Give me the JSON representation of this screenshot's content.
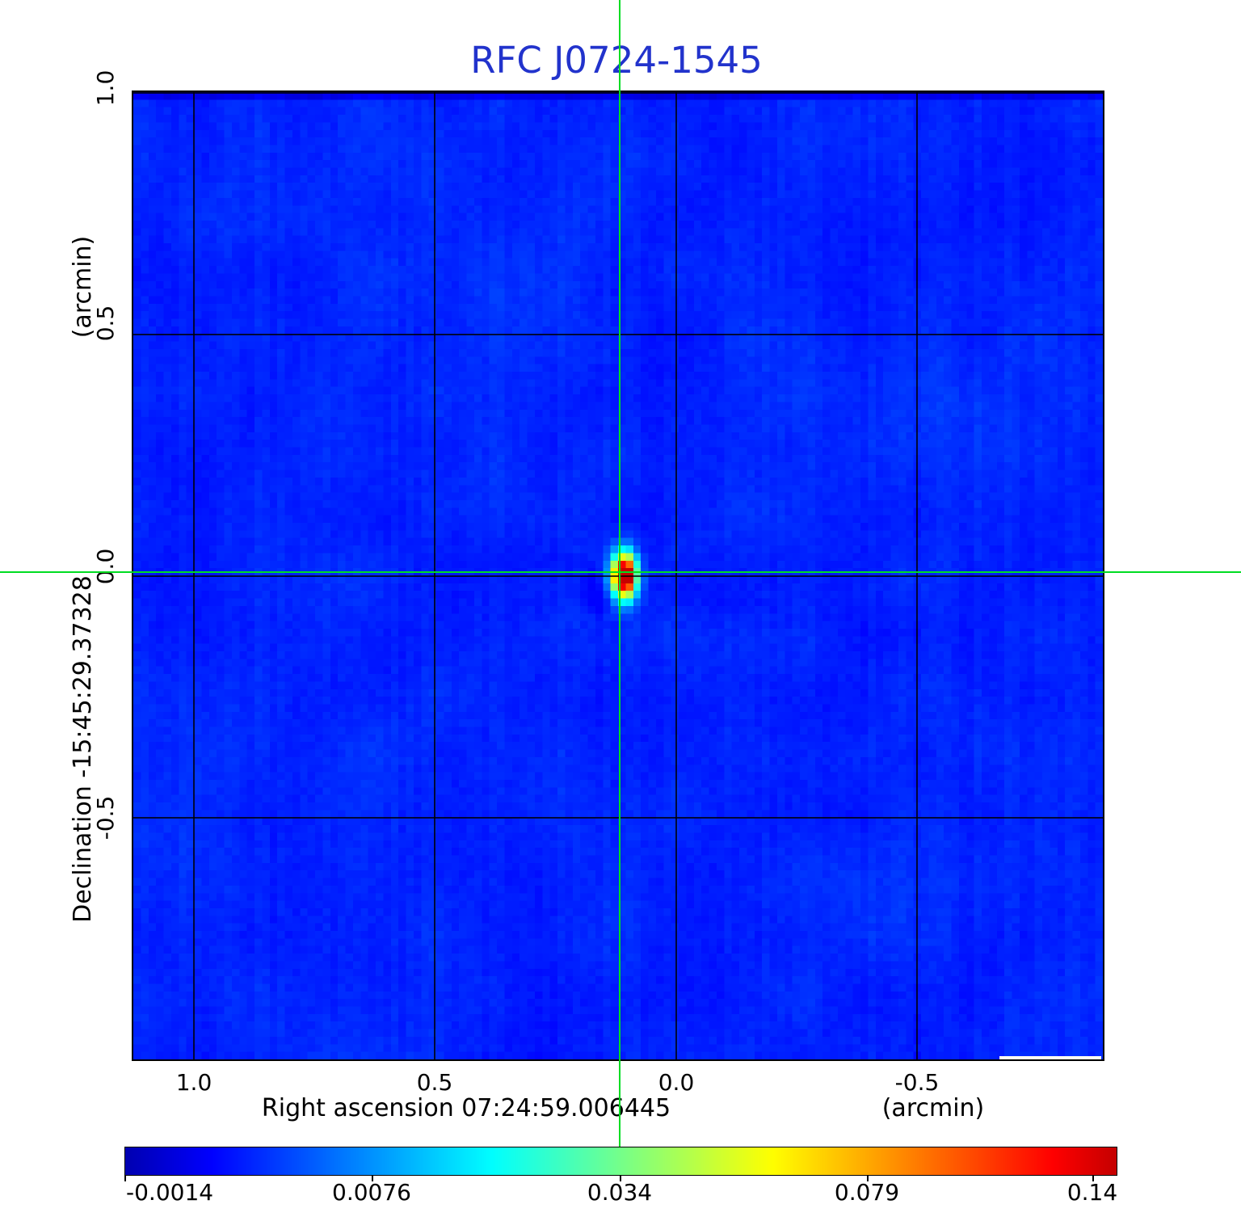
{
  "title": {
    "text": "RFC J0724-1545"
  },
  "axes": {
    "x": {
      "label": "Right ascension  07:24:59.006445",
      "unit": "(arcmin)",
      "ticks": [
        "1.0",
        "0.5",
        "0.0",
        "-0.5"
      ]
    },
    "y": {
      "label": "Declination  -15:45:29.37328",
      "unit": "(arcmin)",
      "ticks": [
        "1.0",
        "0.5",
        "0.0",
        "-0.5"
      ]
    }
  },
  "colorbar": {
    "labels": [
      "-0.0014",
      "0.0076",
      "0.034",
      "0.079",
      "0.14"
    ],
    "colormap": "jet"
  },
  "colors": {
    "title": "#2233cc",
    "crosshair": "#00dd22",
    "field_background": "#0628ee",
    "frame": "#000000",
    "scalebar": "#fffff2",
    "text": "#000000",
    "page_background": "#ffffff"
  },
  "chart_data": {
    "type": "heatmap",
    "title": "RFC J0724-1545",
    "xlabel": "Right ascension 07:24:59.006445 (arcmin)",
    "ylabel": "Declination -15:45:29.37328 (arcmin)",
    "x_ticks": [
      1.0,
      0.5,
      0.0,
      -0.5
    ],
    "y_ticks": [
      1.0,
      0.5,
      0.0,
      -0.5
    ],
    "xlim": [
      1.13,
      -0.89
    ],
    "ylim": [
      -1.0,
      1.0
    ],
    "grid": true,
    "colorbar_ticks": [
      -0.0014,
      0.0076,
      0.034,
      0.079,
      0.14
    ],
    "colorbar_scale": "nonlinear",
    "colormap": "jet",
    "background_level": 0.0,
    "peak_value": 0.14,
    "source": {
      "x_arcmin": 0.12,
      "y_arcmin": 0.01,
      "description": "single compact bright source at green crosshair, elongated north-south, dark-red core with yellow/cyan halo on blue noise field"
    },
    "crosshair_arcmin": {
      "x": 0.12,
      "y": 0.01
    }
  }
}
